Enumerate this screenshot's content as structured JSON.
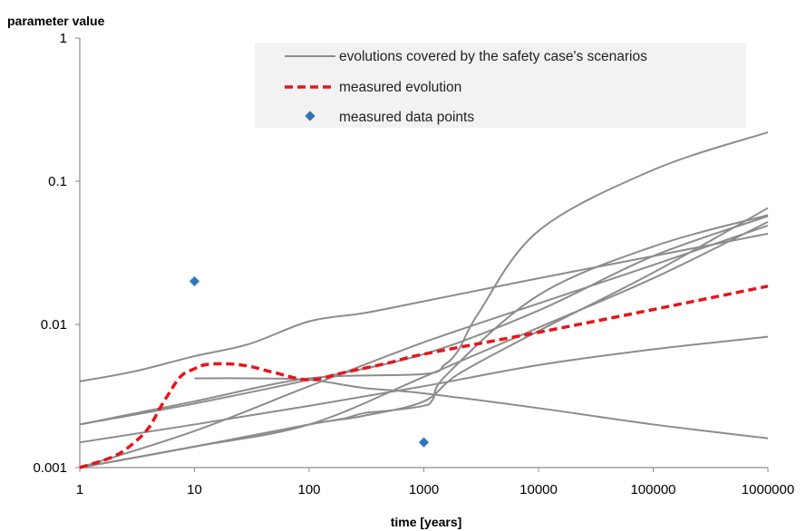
{
  "chart_data": {
    "type": "line",
    "title": "",
    "ylabel": "parameter value",
    "xlabel": "time [years]",
    "x_scale": "log",
    "y_scale": "log",
    "xlim": [
      1,
      1000000
    ],
    "ylim": [
      0.001,
      1
    ],
    "x_ticks": [
      1,
      10,
      100,
      1000,
      10000,
      100000,
      1000000
    ],
    "x_tick_labels": [
      "1",
      "10",
      "100",
      "1000",
      "10000",
      "100000",
      "1000000"
    ],
    "y_ticks": [
      0.001,
      0.01,
      0.1,
      1
    ],
    "y_tick_labels": [
      "0.001",
      "0.01",
      "0.1",
      "1"
    ],
    "grid": false,
    "legend_position": "top-right",
    "legend": [
      {
        "label": "evolutions covered by the safety case's scenarios",
        "style": "solid-gray"
      },
      {
        "label": "measured evolution",
        "style": "dashed-red"
      },
      {
        "label": "measured data points",
        "style": "diamond-blue"
      }
    ],
    "colors": {
      "scenario": "#8c8c8c",
      "measured_evolution": "#e8141b",
      "data_points": "#2e75b6",
      "legend_background": "#f2f2f2"
    },
    "series": [
      {
        "group": "scenario",
        "x": [
          1,
          3,
          10,
          30,
          100,
          300,
          1000,
          10000,
          100000,
          1000000
        ],
        "y": [
          0.004,
          0.0047,
          0.006,
          0.0073,
          0.0105,
          0.012,
          0.0145,
          0.021,
          0.03,
          0.043
        ]
      },
      {
        "group": "scenario",
        "x": [
          1,
          10,
          100,
          1000,
          1500,
          2000,
          3000,
          10000,
          100000,
          1000000
        ],
        "y": [
          0.002,
          0.0029,
          0.0042,
          0.0045,
          0.0052,
          0.0066,
          0.012,
          0.045,
          0.12,
          0.22
        ]
      },
      {
        "group": "scenario",
        "x": [
          1,
          10,
          100,
          1000,
          10000,
          100000,
          1000000
        ],
        "y": [
          0.002,
          0.0028,
          0.0041,
          0.0062,
          0.0125,
          0.03,
          0.057
        ]
      },
      {
        "group": "scenario",
        "x": [
          1,
          10,
          100,
          1000,
          10000,
          100000,
          1000000
        ],
        "y": [
          0.0015,
          0.002,
          0.0027,
          0.0037,
          0.0052,
          0.0067,
          0.0082
        ]
      },
      {
        "group": "scenario",
        "x": [
          1,
          10,
          100,
          1000,
          10000,
          100000,
          1000000
        ],
        "y": [
          0.001,
          0.0014,
          0.002,
          0.0043,
          0.0095,
          0.021,
          0.052
        ]
      },
      {
        "group": "scenario",
        "x": [
          1,
          10,
          100,
          300,
          1000,
          2000,
          10000,
          100000,
          1000000
        ],
        "y": [
          0.001,
          0.0014,
          0.002,
          0.0023,
          0.0029,
          0.0045,
          0.009,
          0.023,
          0.065
        ]
      },
      {
        "group": "scenario",
        "x": [
          1,
          10,
          100,
          1000,
          10000,
          100000,
          1000000
        ],
        "y": [
          0.001,
          0.0018,
          0.0037,
          0.0075,
          0.014,
          0.026,
          0.049
        ]
      },
      {
        "group": "scenario",
        "x": [
          1,
          10,
          100,
          200,
          300,
          500,
          1000,
          1200,
          1600,
          10000,
          100000,
          1000000
        ],
        "y": [
          0.001,
          0.0014,
          0.002,
          0.0022,
          0.0024,
          0.0025,
          0.0027,
          0.003,
          0.0045,
          0.016,
          0.035,
          0.058
        ]
      },
      {
        "group": "scenario",
        "x": [
          10,
          30,
          100,
          300,
          1000,
          10000,
          100000,
          1000000
        ],
        "y": [
          0.0042,
          0.0042,
          0.0041,
          0.0036,
          0.0033,
          0.0026,
          0.002,
          0.0016
        ]
      },
      {
        "group": "measured_evolution",
        "x": [
          1,
          2,
          3,
          4,
          5,
          6,
          7,
          8,
          10,
          12,
          15,
          20,
          30,
          50,
          100,
          200,
          500,
          1000,
          10000,
          100000,
          1000000
        ],
        "y": [
          0.001,
          0.0012,
          0.0015,
          0.0019,
          0.0026,
          0.0033,
          0.004,
          0.0045,
          0.0049,
          0.0052,
          0.0053,
          0.0053,
          0.0051,
          0.0046,
          0.0041,
          0.0046,
          0.0054,
          0.0062,
          0.0088,
          0.0127,
          0.0185
        ]
      }
    ],
    "points": [
      {
        "x": 10,
        "y": 0.02
      },
      {
        "x": 1000,
        "y": 0.0015
      }
    ]
  }
}
